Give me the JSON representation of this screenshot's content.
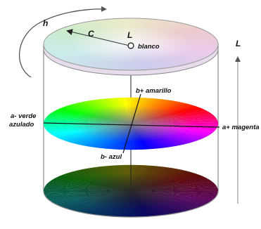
{
  "labels": {
    "hue": "h",
    "chroma": "C",
    "lightness_point": "L",
    "white": "blanco",
    "lightness_axis": "L",
    "b_plus": "b+ amarillo",
    "a_minus_line1": "a- verde",
    "a_minus_line2": "azulado",
    "a_plus": "a+ magenta",
    "b_minus": "b- azul"
  },
  "discs": [
    {
      "name": "top",
      "lightness": "light",
      "saturation": 0.45
    },
    {
      "name": "middle",
      "lightness": "mid",
      "saturation": 1.0
    },
    {
      "name": "bottom",
      "lightness": "dark",
      "saturation": 0.85
    }
  ],
  "colors": {
    "cylinder_stroke": "#8a8a8a",
    "axis_line": "#111111"
  }
}
